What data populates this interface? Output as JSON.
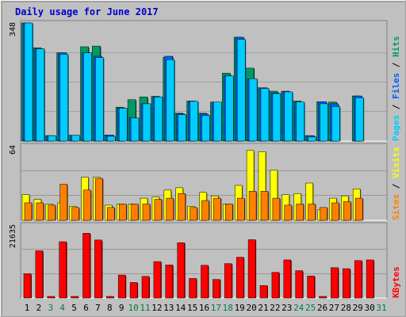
{
  "colors": {
    "background": "#c0c0c0",
    "title": "#0000cc",
    "pages": "#00ccff",
    "files": "#0060ff",
    "hits": "#009966",
    "visits": "#ffff00",
    "sites": "#ff8000",
    "kbytes": "#ff0000",
    "weekend_day": "#008040",
    "weekday": "#000000"
  },
  "chart_data": {
    "type": "bar",
    "title": "Daily usage for June 2017",
    "x_labels": [
      "1",
      "2",
      "3",
      "4",
      "5",
      "6",
      "7",
      "8",
      "9",
      "10",
      "11",
      "12",
      "13",
      "14",
      "15",
      "16",
      "17",
      "18",
      "19",
      "20",
      "21",
      "22",
      "23",
      "24",
      "25",
      "26",
      "27",
      "28",
      "29",
      "30",
      "31"
    ],
    "weekend_days": [
      3,
      4,
      10,
      11,
      17,
      18,
      24,
      25,
      31
    ],
    "panels": [
      {
        "name": "pages-files-hits",
        "max_label": "348",
        "ylim": [
          0,
          348
        ],
        "legend": [
          {
            "text": "Hits",
            "color": "#009966"
          },
          {
            "text": "Files",
            "color": "#0060ff"
          },
          {
            "text": "Pages",
            "color": "#00ccff"
          }
        ],
        "series": [
          {
            "name": "Hits",
            "color": "#009966",
            "values": [
              348,
              275,
              16,
              260,
              17,
              278,
              280,
              18,
              100,
              122,
              130,
              132,
              247,
              82,
              118,
              82,
              115,
              200,
              306,
              215,
              157,
              147,
              147,
              118,
              16,
              116,
              115,
              0,
              133,
              0,
              0
            ]
          },
          {
            "name": "Files",
            "color": "#0060ff",
            "values": [
              348,
              272,
              16,
              260,
              17,
              260,
              250,
              18,
              97,
              68,
              110,
              130,
              250,
              80,
              117,
              80,
              115,
              192,
              306,
              182,
              157,
              142,
              145,
              115,
              16,
              116,
              110,
              0,
              133,
              0,
              0
            ]
          },
          {
            "name": "Pages",
            "color": "#00ccff",
            "values": [
              348,
              272,
              16,
              256,
              17,
              260,
              246,
              14,
              97,
              68,
              110,
              130,
              240,
              78,
              117,
              75,
              115,
              192,
              300,
              184,
              155,
              140,
              145,
              115,
              12,
              110,
              102,
              0,
              128,
              0,
              0
            ]
          }
        ]
      },
      {
        "name": "visits-sites",
        "max_label": "64",
        "ylim": [
          0,
          64
        ],
        "legend": [
          {
            "text": "Visits",
            "color": "#ffff00"
          },
          {
            "text": "Sites",
            "color": "#ff8000"
          }
        ],
        "series": [
          {
            "name": "Visits",
            "color": "#ffff00",
            "values": [
              22,
              18,
              14,
              15,
              12,
              37,
              37,
              13,
              14,
              14,
              19,
              20,
              26,
              28,
              12,
              24,
              21,
              14,
              30,
              60,
              59,
              43,
              22,
              23,
              32,
              9,
              19,
              21,
              27,
              0,
              0
            ]
          },
          {
            "name": "Sites",
            "color": "#ff8000",
            "values": [
              15,
              15,
              13,
              31,
              11,
              26,
              36,
              11,
              14,
              14,
              14,
              18,
              19,
              23,
              11,
              17,
              19,
              14,
              19,
              25,
              25,
              19,
              13,
              14,
              14,
              11,
              15,
              16,
              19,
              0,
              0
            ]
          }
        ]
      },
      {
        "name": "kbytes",
        "max_label": "21635",
        "ylim": [
          0,
          21635
        ],
        "legend": [
          {
            "text": "KBytes",
            "color": "#ff0000"
          }
        ],
        "series": [
          {
            "name": "KBytes",
            "color": "#ff0000",
            "values": [
              7200,
              14000,
              380,
              16700,
              350,
              19200,
              17200,
              200,
              6800,
              4600,
              6400,
              10800,
              9800,
              16400,
              5800,
              9700,
              5500,
              10200,
              12100,
              17300,
              3700,
              7600,
              11300,
              8100,
              6500,
              200,
              9000,
              8700,
              11100,
              11300,
              0
            ]
          }
        ]
      }
    ]
  }
}
